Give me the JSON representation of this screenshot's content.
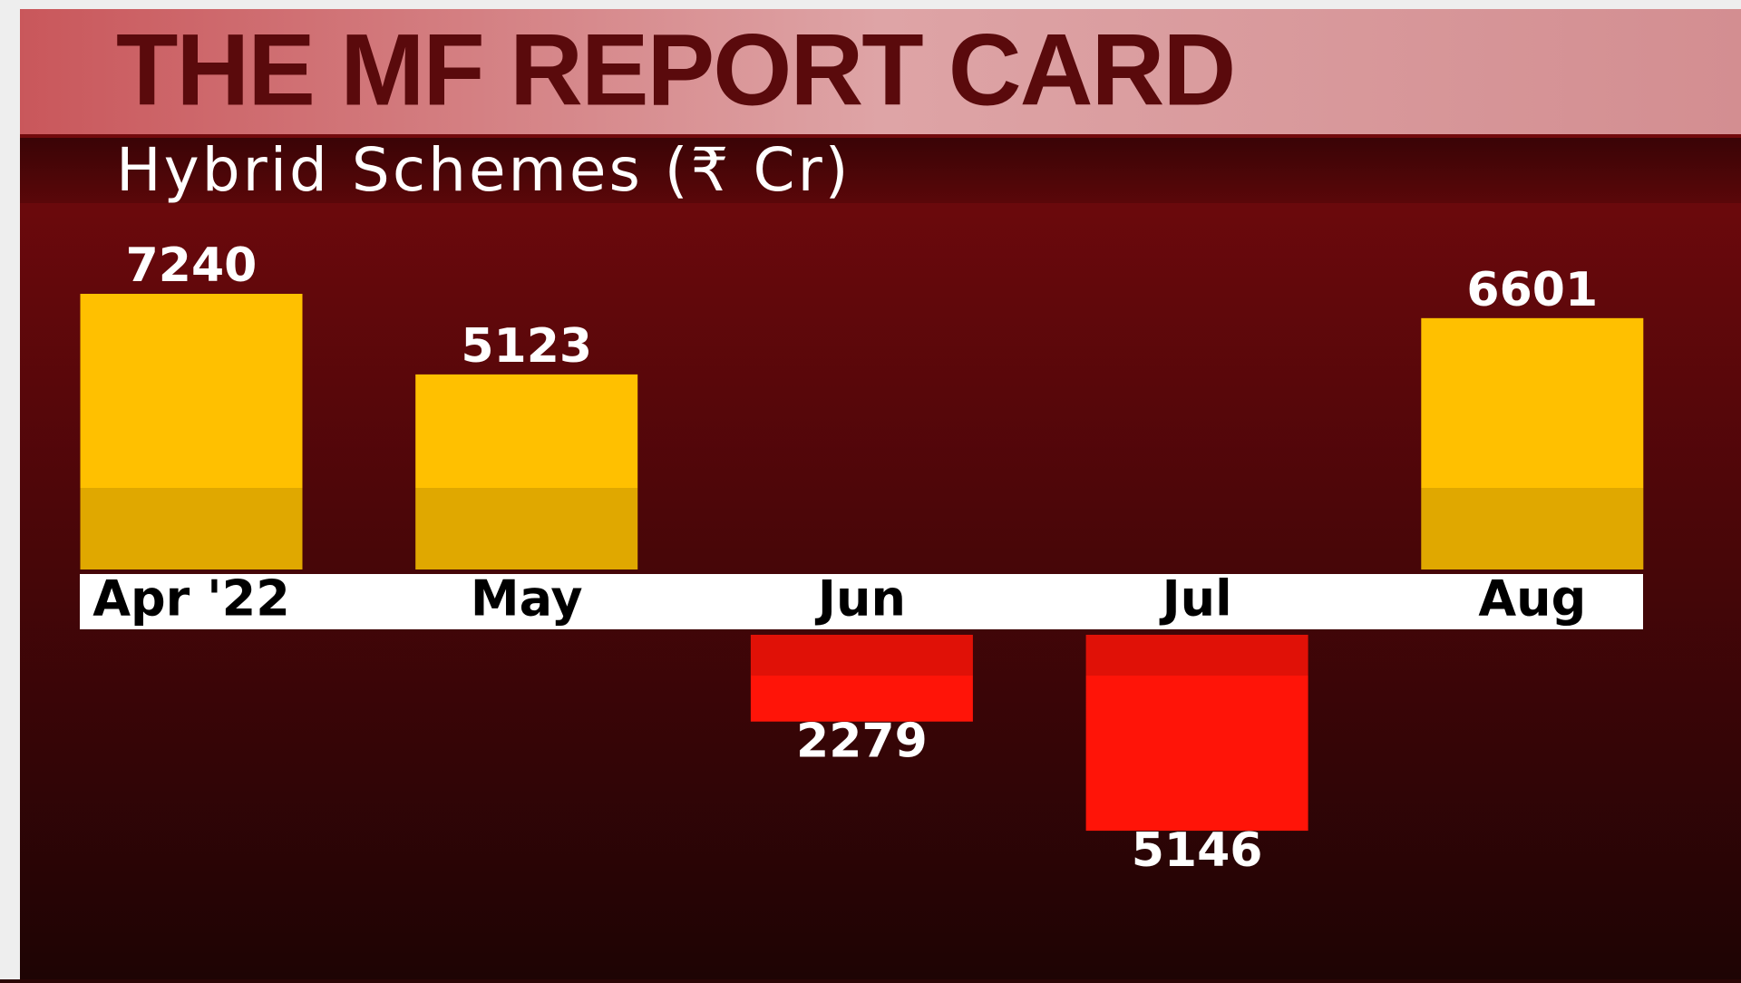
{
  "chart_data": {
    "type": "bar",
    "title": "THE MF REPORT CARD",
    "subtitle": "Hybrid Schemes (₹ Cr)",
    "categories": [
      "Apr '22",
      "May",
      "Jun",
      "Jul",
      "Aug"
    ],
    "values": [
      7240,
      5123,
      -2279,
      -5146,
      6601
    ],
    "value_labels": [
      "7240",
      "5123",
      "2279",
      "5146",
      "6601"
    ],
    "positive_color": "#ffc000",
    "negative_color": "#ff1408"
  }
}
